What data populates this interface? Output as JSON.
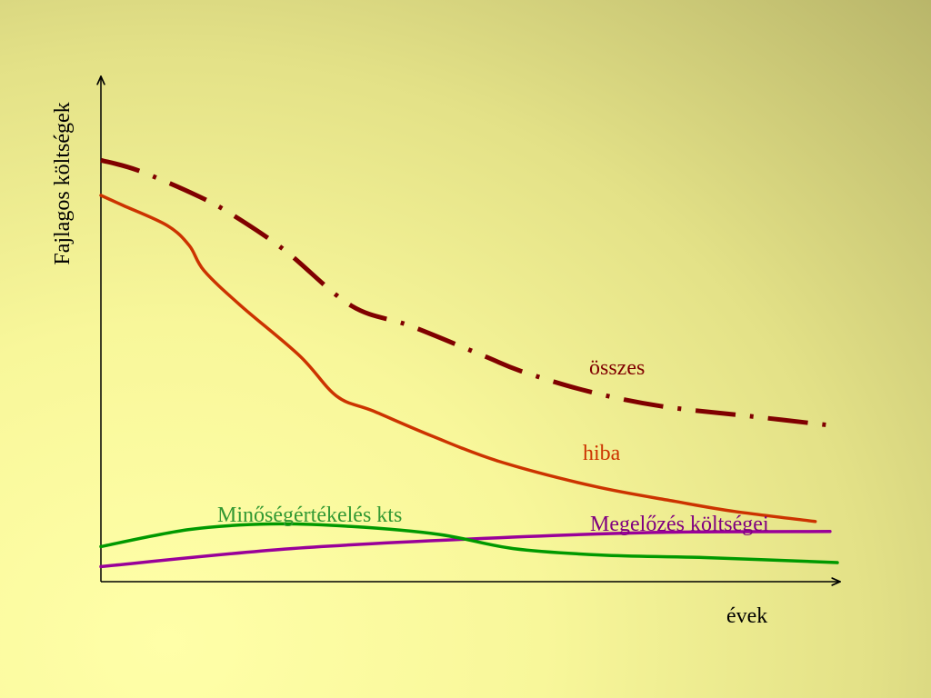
{
  "chart_data": {
    "type": "line",
    "title": "",
    "xlabel": "évek",
    "ylabel": "Fajlagos költségek",
    "xlim": [
      0,
      100
    ],
    "ylim": [
      0,
      100
    ],
    "grid": false,
    "legend": "inline labels at line ends",
    "series": [
      {
        "name": "összes",
        "color": "#800000",
        "style": "dash-dot",
        "x": [
          0,
          5,
          13,
          18,
          25,
          34,
          42,
          52,
          57,
          66,
          76,
          88,
          100
        ],
        "y": [
          84,
          82,
          77,
          73,
          66,
          55,
          51,
          45,
          42,
          38,
          35,
          33,
          31
        ]
      },
      {
        "name": "hiba",
        "color": "#cc3300",
        "style": "solid",
        "x": [
          0,
          3,
          9,
          12,
          14,
          19,
          27,
          32,
          37,
          45,
          54,
          67,
          78,
          86,
          97
        ],
        "y": [
          77,
          75,
          71,
          67,
          62,
          55,
          45,
          37,
          34,
          29,
          24,
          19,
          16,
          14,
          12
        ]
      },
      {
        "name": "Megelőzés költségei",
        "color": "#990099",
        "style": "solid",
        "x": [
          0,
          25,
          50,
          75,
          99
        ],
        "y": [
          3,
          6.5,
          8.5,
          9.8,
          10
        ]
      },
      {
        "name": "Minőségértékelés kts",
        "color": "#009900",
        "style": "solid",
        "x": [
          0,
          12,
          23,
          34,
          46,
          56,
          68,
          82,
          100
        ],
        "y": [
          7,
          10.4,
          11.5,
          11,
          9.4,
          6.6,
          5.3,
          4.8,
          3.8
        ]
      }
    ]
  },
  "colors": {
    "axis": "#000000",
    "label_osszes": "#800000",
    "label_hiba": "#cc3300",
    "label_megelozes": "#800080",
    "label_minoseg": "#339933"
  }
}
